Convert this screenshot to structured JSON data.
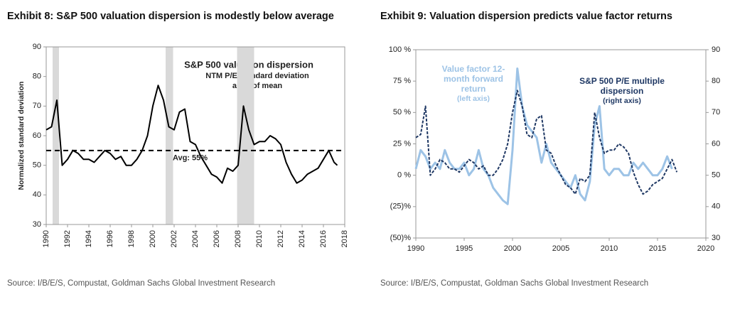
{
  "chart_data": [
    {
      "type": "line",
      "title": "Exhibit 8: S&P 500 valuation dispersion is modestly below average",
      "annotations": [
        "S&P 500 valuation dispersion",
        "NTM P/E standard deviation",
        "as % of mean"
      ],
      "ylabel": "Normalized standard deviation",
      "source": "Source: I/B/E/S, Compustat, Goldman Sachs Global Investment Research",
      "x": [
        1990,
        1990.5,
        1991,
        1991.5,
        1992,
        1992.5,
        1993,
        1993.5,
        1994,
        1994.5,
        1995,
        1995.5,
        1996,
        1996.5,
        1997,
        1997.5,
        1998,
        1998.5,
        1999,
        1999.5,
        2000,
        2000.5,
        2001,
        2001.5,
        2002,
        2002.5,
        2003,
        2003.5,
        2004,
        2004.5,
        2005,
        2005.5,
        2006,
        2006.5,
        2007,
        2007.5,
        2008,
        2008.5,
        2009,
        2009.5,
        2010,
        2010.5,
        2011,
        2011.5,
        2012,
        2012.5,
        2013,
        2013.5,
        2014,
        2014.5,
        2015,
        2015.5,
        2016,
        2016.5,
        2017,
        2017.3
      ],
      "values": [
        62,
        63,
        72,
        50,
        52,
        55,
        54,
        52,
        52,
        51,
        53,
        55,
        54,
        52,
        53,
        50,
        50,
        52,
        55,
        60,
        70,
        77,
        72,
        63,
        62,
        68,
        69,
        58,
        57,
        53,
        50,
        47,
        46,
        44,
        49,
        48,
        50,
        70,
        62,
        57,
        58,
        58,
        60,
        59,
        57,
        51,
        47,
        44,
        45,
        47,
        48,
        49,
        52,
        55,
        51,
        50
      ],
      "color": "#000000",
      "reference_line": {
        "value": 55,
        "label": "Avg: 55%"
      },
      "shaded_periods": [
        [
          1990.6,
          1991.2
        ],
        [
          2001.2,
          2001.9
        ],
        [
          2007.9,
          2009.5
        ]
      ],
      "shade_color": "#d9d9d9",
      "xlim": [
        1990,
        2018
      ],
      "xticks": [
        1990,
        1992,
        1994,
        1996,
        1998,
        2000,
        2002,
        2004,
        2006,
        2008,
        2010,
        2012,
        2014,
        2016,
        2018
      ],
      "ylim": [
        30,
        90
      ],
      "yticks": [
        30,
        40,
        50,
        60,
        70,
        80,
        90
      ]
    },
    {
      "type": "line",
      "title": "Exhibit 9: Valuation dispersion predicts value factor returns",
      "source": "Source: I/B/E/S, Compustat, Goldman Sachs Global Investment Research",
      "x": [
        1990,
        1990.5,
        1991,
        1991.5,
        1992,
        1992.5,
        1993,
        1993.5,
        1994,
        1994.5,
        1995,
        1995.5,
        1996,
        1996.5,
        1997,
        1997.5,
        1998,
        1998.5,
        1999,
        1999.5,
        2000,
        2000.5,
        2001,
        2001.5,
        2002,
        2002.5,
        2003,
        2003.5,
        2004,
        2004.5,
        2005,
        2005.5,
        2006,
        2006.5,
        2007,
        2007.5,
        2008,
        2008.5,
        2009,
        2009.5,
        2010,
        2010.5,
        2011,
        2011.5,
        2012,
        2012.5,
        2013,
        2013.5,
        2014,
        2014.5,
        2015,
        2015.5,
        2016,
        2016.5,
        2017
      ],
      "series": [
        {
          "name": "Value factor 12-month forward return",
          "axis_note": "(left axis)",
          "color": "#9dc3e6",
          "axis": "y",
          "values": [
            5,
            20,
            15,
            5,
            10,
            5,
            20,
            10,
            5,
            5,
            10,
            0,
            5,
            20,
            5,
            0,
            -10,
            -15,
            -20,
            -23,
            20,
            85,
            55,
            40,
            35,
            30,
            10,
            25,
            10,
            5,
            0,
            -5,
            -10,
            0,
            -15,
            -20,
            -5,
            40,
            55,
            5,
            0,
            5,
            5,
            0,
            0,
            10,
            5,
            10,
            5,
            0,
            0,
            5,
            15,
            5,
            null
          ]
        },
        {
          "name": "S&P 500 P/E multiple dispersion",
          "axis_note": "(right axis)",
          "color": "#1f3864",
          "axis": "y2",
          "dashed": true,
          "values": [
            62,
            63,
            72,
            50,
            52,
            55,
            54,
            52,
            52,
            51,
            53,
            55,
            54,
            52,
            53,
            50,
            50,
            52,
            55,
            60,
            70,
            77,
            72,
            63,
            62,
            68,
            69,
            58,
            57,
            53,
            50,
            47,
            46,
            44,
            49,
            48,
            50,
            70,
            62,
            57,
            58,
            58,
            60,
            59,
            57,
            51,
            47,
            44,
            45,
            47,
            48,
            49,
            52,
            55,
            51
          ]
        }
      ],
      "xlim": [
        1990,
        2020
      ],
      "xticks": [
        1990,
        1995,
        2000,
        2005,
        2010,
        2015,
        2020
      ],
      "ylim": [
        -50,
        100
      ],
      "yticks": [
        {
          "value": -50,
          "label": "(50)%"
        },
        {
          "value": -25,
          "label": "(25)%"
        },
        {
          "value": 0,
          "label": "0 %"
        },
        {
          "value": 25,
          "label": "25 %"
        },
        {
          "value": 50,
          "label": "50 %"
        },
        {
          "value": 75,
          "label": "75 %"
        },
        {
          "value": 100,
          "label": "100 %"
        }
      ],
      "y2lim": [
        30,
        90
      ],
      "y2ticks": [
        30,
        40,
        50,
        60,
        70,
        80,
        90
      ]
    }
  ]
}
